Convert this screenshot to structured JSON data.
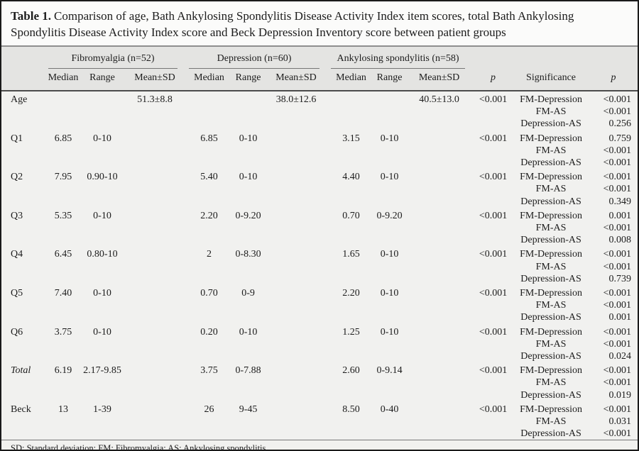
{
  "title": {
    "label": "Table 1.",
    "text": "Comparison of age, Bath Ankylosing Spondylitis Disease Activity Index item scores, total Bath Ankylosing Spondylitis Disease Activity Index score and Beck Depression Inventory score between patient groups"
  },
  "header": {
    "groups": [
      {
        "label": "Fibromyalgia (n=52)"
      },
      {
        "label": "Depression (n=60)"
      },
      {
        "label": "Ankylosing spondylitis (n=58)"
      }
    ],
    "sub": [
      "Median",
      "Range",
      "Mean±SD"
    ],
    "p1": "p",
    "significance": "Significance",
    "p2": "p"
  },
  "rows": [
    {
      "label": "Age",
      "italic": false,
      "fm": {
        "median": "",
        "range": "",
        "mean": "51.3±8.8"
      },
      "dep": {
        "median": "",
        "range": "",
        "mean": "38.0±12.6"
      },
      "as": {
        "median": "",
        "range": "",
        "mean": "40.5±13.0"
      },
      "p": "<0.001",
      "sig": [
        {
          "pair": "FM-Depression",
          "p": "<0.001"
        },
        {
          "pair": "FM-AS",
          "p": "<0.001"
        },
        {
          "pair": "Depression-AS",
          "p": "0.256"
        }
      ]
    },
    {
      "label": "Q1",
      "italic": false,
      "fm": {
        "median": "6.85",
        "range": "0-10",
        "mean": ""
      },
      "dep": {
        "median": "6.85",
        "range": "0-10",
        "mean": ""
      },
      "as": {
        "median": "3.15",
        "range": "0-10",
        "mean": ""
      },
      "p": "<0.001",
      "sig": [
        {
          "pair": "FM-Depression",
          "p": "0.759"
        },
        {
          "pair": "FM-AS",
          "p": "<0.001"
        },
        {
          "pair": "Depression-AS",
          "p": "<0.001"
        }
      ]
    },
    {
      "label": "Q2",
      "italic": false,
      "fm": {
        "median": "7.95",
        "range": "0.90-10",
        "mean": ""
      },
      "dep": {
        "median": "5.40",
        "range": "0-10",
        "mean": ""
      },
      "as": {
        "median": "4.40",
        "range": "0-10",
        "mean": ""
      },
      "p": "<0.001",
      "sig": [
        {
          "pair": "FM-Depression",
          "p": "<0.001"
        },
        {
          "pair": "FM-AS",
          "p": "<0.001"
        },
        {
          "pair": "Depression-AS",
          "p": "0.349"
        }
      ]
    },
    {
      "label": "Q3",
      "italic": false,
      "fm": {
        "median": "5.35",
        "range": "0-10",
        "mean": ""
      },
      "dep": {
        "median": "2.20",
        "range": "0-9.20",
        "mean": ""
      },
      "as": {
        "median": "0.70",
        "range": "0-9.20",
        "mean": ""
      },
      "p": "<0.001",
      "sig": [
        {
          "pair": "FM-Depression",
          "p": "0.001"
        },
        {
          "pair": "FM-AS",
          "p": "<0.001"
        },
        {
          "pair": "Depression-AS",
          "p": "0.008"
        }
      ]
    },
    {
      "label": "Q4",
      "italic": false,
      "fm": {
        "median": "6.45",
        "range": "0.80-10",
        "mean": ""
      },
      "dep": {
        "median": "2",
        "range": "0-8.30",
        "mean": ""
      },
      "as": {
        "median": "1.65",
        "range": "0-10",
        "mean": ""
      },
      "p": "<0.001",
      "sig": [
        {
          "pair": "FM-Depression",
          "p": "<0.001"
        },
        {
          "pair": "FM-AS",
          "p": "<0.001"
        },
        {
          "pair": "Depression-AS",
          "p": "0.739"
        }
      ]
    },
    {
      "label": "Q5",
      "italic": false,
      "fm": {
        "median": "7.40",
        "range": "0-10",
        "mean": ""
      },
      "dep": {
        "median": "0.70",
        "range": "0-9",
        "mean": ""
      },
      "as": {
        "median": "2.20",
        "range": "0-10",
        "mean": ""
      },
      "p": "<0.001",
      "sig": [
        {
          "pair": "FM-Depression",
          "p": "<0.001"
        },
        {
          "pair": "FM-AS",
          "p": "<0.001"
        },
        {
          "pair": "Depression-AS",
          "p": "0.001"
        }
      ]
    },
    {
      "label": "Q6",
      "italic": false,
      "fm": {
        "median": "3.75",
        "range": "0-10",
        "mean": ""
      },
      "dep": {
        "median": "0.20",
        "range": "0-10",
        "mean": ""
      },
      "as": {
        "median": "1.25",
        "range": "0-10",
        "mean": ""
      },
      "p": "<0.001",
      "sig": [
        {
          "pair": "FM-Depression",
          "p": "<0.001"
        },
        {
          "pair": "FM-AS",
          "p": "<0.001"
        },
        {
          "pair": "Depression-AS",
          "p": "0.024"
        }
      ]
    },
    {
      "label": "Total",
      "italic": true,
      "fm": {
        "median": "6.19",
        "range": "2.17-9.85",
        "mean": ""
      },
      "dep": {
        "median": "3.75",
        "range": "0-7.88",
        "mean": ""
      },
      "as": {
        "median": "2.60",
        "range": "0-9.14",
        "mean": ""
      },
      "p": "<0.001",
      "sig": [
        {
          "pair": "FM-Depression",
          "p": "<0.001"
        },
        {
          "pair": "FM-AS",
          "p": "<0.001"
        },
        {
          "pair": "Depression-AS",
          "p": "0.019"
        }
      ]
    },
    {
      "label": "Beck",
      "italic": false,
      "fm": {
        "median": "13",
        "range": "1-39",
        "mean": ""
      },
      "dep": {
        "median": "26",
        "range": "9-45",
        "mean": ""
      },
      "as": {
        "median": "8.50",
        "range": "0-40",
        "mean": ""
      },
      "p": "<0.001",
      "sig": [
        {
          "pair": "FM-Depression",
          "p": "<0.001"
        },
        {
          "pair": "FM-AS",
          "p": "0.031"
        },
        {
          "pair": "Depression-AS",
          "p": "<0.001"
        }
      ]
    }
  ],
  "footnote": "SD: Standard deviation; FM: Fibromyalgia; AS: Ankylosing spondylitis."
}
